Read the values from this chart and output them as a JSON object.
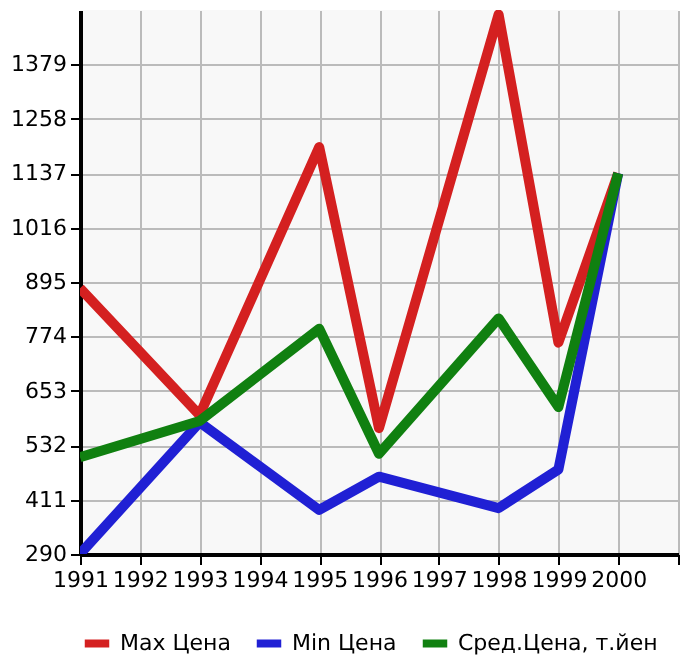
{
  "chart_data": {
    "type": "line",
    "x": [
      1991,
      1993,
      1995,
      1996,
      1998,
      1999,
      2000
    ],
    "series": [
      {
        "name": "Max Цена",
        "color": "#d42020",
        "values": [
          881,
          599,
          1195,
          570,
          1490,
          760,
          1137
        ]
      },
      {
        "name": "Min Цена",
        "color": "#2020d4",
        "values": [
          290,
          583,
          388,
          462,
          392,
          478,
          1137
        ]
      },
      {
        "name": "Сред.Цена, т.йен",
        "color": "#108010",
        "values": [
          505,
          586,
          791,
          513,
          814,
          617,
          1137
        ]
      }
    ],
    "xlim": [
      1991,
      2001
    ],
    "xticks": [
      1991,
      1992,
      1993,
      1994,
      1995,
      1996,
      1997,
      1998,
      1999,
      2000,
      {
        "value": 2001,
        "label": null
      }
    ],
    "ylim": [
      290,
      1500
    ],
    "yticks": [
      290,
      411,
      532,
      653,
      774,
      895,
      1016,
      1137,
      1258,
      1379
    ],
    "grid": true,
    "legend": "bottom",
    "marker": "none",
    "line_style": "solid"
  }
}
